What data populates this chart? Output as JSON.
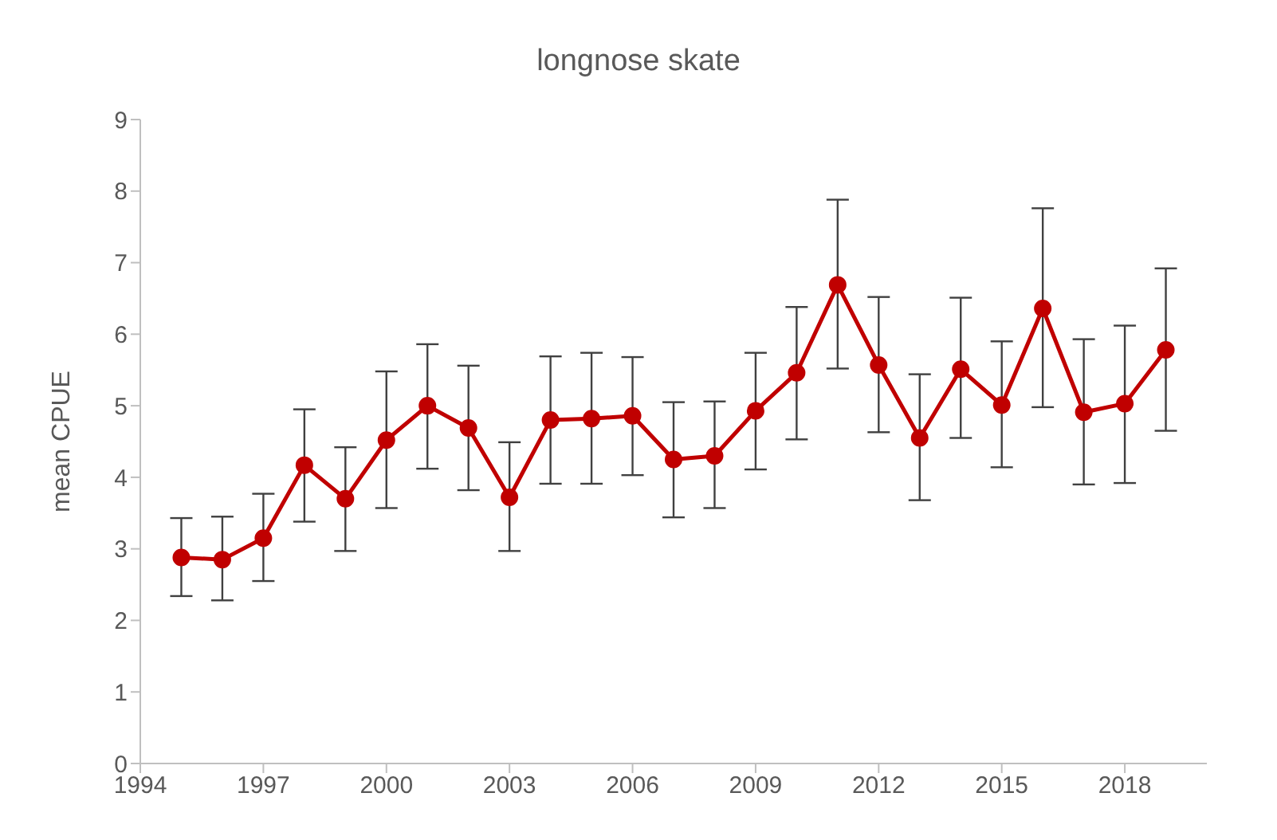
{
  "chart_data": {
    "type": "line",
    "title": "longnose skate",
    "ylabel": "mean CPUE",
    "x": [
      1995,
      1996,
      1997,
      1998,
      1999,
      2000,
      2001,
      2002,
      2003,
      2004,
      2005,
      2006,
      2007,
      2008,
      2009,
      2010,
      2011,
      2012,
      2013,
      2014,
      2015,
      2016,
      2017,
      2018,
      2019
    ],
    "series": [
      {
        "color": "#c00000",
        "values": [
          2.88,
          2.85,
          3.15,
          4.17,
          3.7,
          4.52,
          5.0,
          4.69,
          3.72,
          4.8,
          4.82,
          4.86,
          4.25,
          4.3,
          4.93,
          5.46,
          6.69,
          5.57,
          4.55,
          5.51,
          5.01,
          6.36,
          4.91,
          5.03,
          5.78
        ],
        "errors": [
          [
            2.34,
            3.43
          ],
          [
            2.28,
            3.45
          ],
          [
            2.55,
            3.77
          ],
          [
            3.38,
            4.95
          ],
          [
            2.97,
            4.42
          ],
          [
            3.57,
            5.48
          ],
          [
            4.12,
            5.86
          ],
          [
            3.82,
            5.56
          ],
          [
            2.97,
            4.49
          ],
          [
            3.91,
            5.69
          ],
          [
            3.91,
            5.74
          ],
          [
            4.03,
            5.68
          ],
          [
            3.44,
            5.05
          ],
          [
            3.57,
            5.06
          ],
          [
            4.11,
            5.74
          ],
          [
            4.53,
            6.38
          ],
          [
            5.52,
            7.88
          ],
          [
            4.63,
            6.52
          ],
          [
            3.68,
            5.44
          ],
          [
            4.55,
            6.51
          ],
          [
            4.14,
            5.9
          ],
          [
            4.98,
            7.76
          ],
          [
            3.9,
            5.93
          ],
          [
            3.92,
            6.12
          ],
          [
            4.65,
            6.92
          ]
        ]
      }
    ],
    "xlim": [
      1994,
      2020
    ],
    "xticks": [
      1994,
      1997,
      2000,
      2003,
      2006,
      2009,
      2012,
      2015,
      2018
    ],
    "ylim": [
      0,
      9
    ],
    "yticks": [
      0,
      1,
      2,
      3,
      4,
      5,
      6,
      7,
      8,
      9
    ],
    "grid": false,
    "marker": "circle",
    "line_style": "solid"
  }
}
